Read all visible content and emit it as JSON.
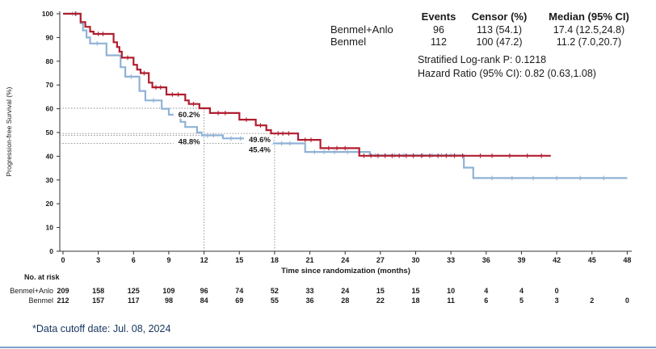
{
  "colors": {
    "arm1": "#b01e2f",
    "arm2": "#8fb2d6",
    "axis": "#333333",
    "ref_line": "#8a8a8a",
    "footnote": "#17355e",
    "bottom_line": "#7da0c9"
  },
  "stats_table": {
    "headers": [
      "Events",
      "Censor (%)",
      "Median (95% CI)"
    ],
    "rows": [
      {
        "label": "Benmel+Anlo",
        "events": "96",
        "censor": "113 (54.1)",
        "median": "17.4 (12.5,24.8)"
      },
      {
        "label": "Benmel",
        "events": "112",
        "censor": "100 (47.2)",
        "median": "11.2 (7.0,20.7)"
      }
    ],
    "logrank": "Stratified Log-rank P: 0.1218",
    "hazard": "Hazard Ratio (95% CI): 0.82 (0.63,1.08)"
  },
  "chart_data": {
    "type": "line",
    "subtype": "kaplan-meier-step",
    "title": "",
    "xlabel": "Time since randomization (months)",
    "ylabel": "Progression-free Survival (%)",
    "xlim": [
      0,
      48
    ],
    "xtick_step": 3,
    "ylim": [
      0,
      100
    ],
    "ytick_step": 10,
    "grid": false,
    "legend_position": "top-right",
    "series": [
      {
        "name": "Benmel+Anlo",
        "color": "#b01e2f",
        "steps": [
          [
            0,
            100
          ],
          [
            1.4,
            100
          ],
          [
            1.5,
            96.5
          ],
          [
            1.9,
            94.5
          ],
          [
            2.3,
            92.5
          ],
          [
            2.6,
            91.5
          ],
          [
            4.2,
            91.5
          ],
          [
            4.3,
            88
          ],
          [
            4.6,
            86
          ],
          [
            4.8,
            84
          ],
          [
            5.0,
            81.5
          ],
          [
            5.9,
            81.5
          ],
          [
            6.0,
            78.5
          ],
          [
            6.3,
            76.5
          ],
          [
            6.6,
            75
          ],
          [
            7.2,
            75
          ],
          [
            7.3,
            71
          ],
          [
            7.6,
            69
          ],
          [
            8.7,
            69
          ],
          [
            8.8,
            66
          ],
          [
            10.3,
            66
          ],
          [
            10.4,
            63.5
          ],
          [
            10.7,
            62
          ],
          [
            11.5,
            62
          ],
          [
            11.6,
            60.2
          ],
          [
            12.4,
            60.2
          ],
          [
            12.5,
            58.2
          ],
          [
            14.9,
            58.2
          ],
          [
            15.0,
            55.4
          ],
          [
            16.3,
            55.4
          ],
          [
            16.4,
            53
          ],
          [
            17.2,
            53
          ],
          [
            17.3,
            51
          ],
          [
            17.6,
            51
          ],
          [
            17.7,
            49.6
          ],
          [
            19.9,
            49.6
          ],
          [
            20.0,
            46.9
          ],
          [
            21.8,
            46.9
          ],
          [
            21.9,
            43.4
          ],
          [
            25.1,
            43.4
          ],
          [
            25.2,
            40.2
          ],
          [
            41.5,
            40.2
          ]
        ],
        "censor_ticks": [
          [
            1.05,
            100
          ],
          [
            3.0,
            91.5
          ],
          [
            3.4,
            91.5
          ],
          [
            5.5,
            81.5
          ],
          [
            6.9,
            75
          ],
          [
            7.9,
            69
          ],
          [
            8.3,
            69
          ],
          [
            9.3,
            66
          ],
          [
            9.8,
            66
          ],
          [
            11.1,
            62
          ],
          [
            13.2,
            58.2
          ],
          [
            13.8,
            58.2
          ],
          [
            15.6,
            55.4
          ],
          [
            16.8,
            53
          ],
          [
            18.3,
            49.6
          ],
          [
            18.7,
            49.6
          ],
          [
            19.2,
            49.6
          ],
          [
            20.6,
            46.9
          ],
          [
            21.1,
            46.9
          ],
          [
            22.6,
            43.4
          ],
          [
            23.3,
            43.4
          ],
          [
            24.0,
            43.4
          ],
          [
            25.6,
            40.2
          ],
          [
            26.2,
            40.2
          ],
          [
            26.8,
            40.2
          ],
          [
            27.4,
            40.2
          ],
          [
            28.0,
            40.2
          ],
          [
            28.6,
            40.2
          ],
          [
            29.2,
            40.2
          ],
          [
            29.8,
            40.2
          ],
          [
            30.5,
            40.2
          ],
          [
            31.2,
            40.2
          ],
          [
            31.9,
            40.2
          ],
          [
            32.6,
            40.2
          ],
          [
            33.3,
            40.2
          ],
          [
            34.0,
            40.2
          ],
          [
            35.5,
            40.2
          ],
          [
            36.5,
            40.2
          ],
          [
            38.0,
            40.2
          ],
          [
            39.5,
            40.2
          ],
          [
            40.7,
            40.2
          ]
        ]
      },
      {
        "name": "Benmel",
        "color": "#8fb2d6",
        "steps": [
          [
            0,
            100
          ],
          [
            1.4,
            100
          ],
          [
            1.5,
            96
          ],
          [
            1.7,
            93
          ],
          [
            2.0,
            90
          ],
          [
            2.3,
            87.5
          ],
          [
            3.6,
            87.5
          ],
          [
            3.7,
            82.5
          ],
          [
            4.8,
            82.5
          ],
          [
            4.9,
            77.5
          ],
          [
            5.3,
            73.5
          ],
          [
            6.4,
            73.5
          ],
          [
            6.5,
            67.5
          ],
          [
            7.0,
            63.5
          ],
          [
            8.3,
            63.5
          ],
          [
            8.4,
            60
          ],
          [
            8.9,
            60
          ],
          [
            9.0,
            57.5
          ],
          [
            9.9,
            57.5
          ],
          [
            10.0,
            54.5
          ],
          [
            10.4,
            52.3
          ],
          [
            11.3,
            52.3
          ],
          [
            11.4,
            50
          ],
          [
            11.8,
            48.8
          ],
          [
            13.5,
            48.8
          ],
          [
            13.6,
            47.5
          ],
          [
            17.7,
            47.5
          ],
          [
            17.8,
            45.4
          ],
          [
            20.5,
            45.4
          ],
          [
            20.6,
            41.8
          ],
          [
            26.0,
            41.8
          ],
          [
            26.1,
            40.4
          ],
          [
            34.0,
            40.4
          ],
          [
            34.1,
            35.2
          ],
          [
            34.8,
            35.2
          ],
          [
            34.9,
            30.8
          ],
          [
            48,
            30.8
          ]
        ],
        "censor_ticks": [
          [
            0.8,
            100
          ],
          [
            1.15,
            100
          ],
          [
            2.9,
            87.5
          ],
          [
            5.8,
            73.5
          ],
          [
            7.7,
            63.5
          ],
          [
            9.4,
            57.5
          ],
          [
            12.3,
            48.8
          ],
          [
            12.8,
            48.8
          ],
          [
            14.3,
            47.5
          ],
          [
            15.1,
            47.5
          ],
          [
            15.9,
            47.5
          ],
          [
            16.6,
            47.5
          ],
          [
            18.6,
            45.4
          ],
          [
            19.3,
            45.4
          ],
          [
            21.4,
            41.8
          ],
          [
            22.2,
            41.8
          ],
          [
            23.1,
            41.8
          ],
          [
            24.2,
            41.8
          ],
          [
            25.2,
            41.8
          ],
          [
            26.6,
            40.4
          ],
          [
            27.4,
            40.4
          ],
          [
            28.2,
            40.4
          ],
          [
            29.0,
            40.4
          ],
          [
            29.8,
            40.4
          ],
          [
            30.6,
            40.4
          ],
          [
            31.4,
            40.4
          ],
          [
            32.2,
            40.4
          ],
          [
            33.0,
            40.4
          ],
          [
            36.5,
            30.8
          ],
          [
            38.2,
            30.8
          ],
          [
            40.0,
            30.8
          ],
          [
            42.0,
            30.8
          ],
          [
            44.0,
            30.8
          ],
          [
            46.0,
            30.8
          ]
        ]
      }
    ],
    "annotations": [
      {
        "label": "60.2%",
        "x": 12,
        "y": 60.2,
        "series": 0
      },
      {
        "label": "48.8%",
        "x": 12,
        "y": 48.8,
        "series": 1
      },
      {
        "label": "49.6%",
        "x": 18,
        "y": 49.6,
        "series": 0
      },
      {
        "label": "45.4%",
        "x": 18,
        "y": 45.4,
        "series": 1
      }
    ],
    "reference_lines": {
      "horizontal": [
        {
          "y": 60.2,
          "x_end": 12
        },
        {
          "y": 49.6,
          "x_end": 18
        },
        {
          "y": 48.8,
          "x_end": 12
        },
        {
          "y": 45.4,
          "x_end": 18
        }
      ],
      "vertical": [
        {
          "x": 12,
          "y_top": 60.2
        },
        {
          "x": 18,
          "y_top": 49.6
        }
      ]
    }
  },
  "at_risk": {
    "title": "No. at risk",
    "rows": [
      {
        "label": "Benmel+Anlo",
        "values": [
          209,
          158,
          125,
          109,
          96,
          74,
          52,
          33,
          24,
          15,
          15,
          10,
          4,
          4,
          0
        ]
      },
      {
        "label": "Benmel",
        "values": [
          212,
          157,
          117,
          98,
          84,
          69,
          55,
          36,
          28,
          22,
          18,
          11,
          6,
          5,
          3,
          2,
          0
        ]
      }
    ]
  },
  "footnote": "*Data cutoff  date: Jul. 08, 2024"
}
